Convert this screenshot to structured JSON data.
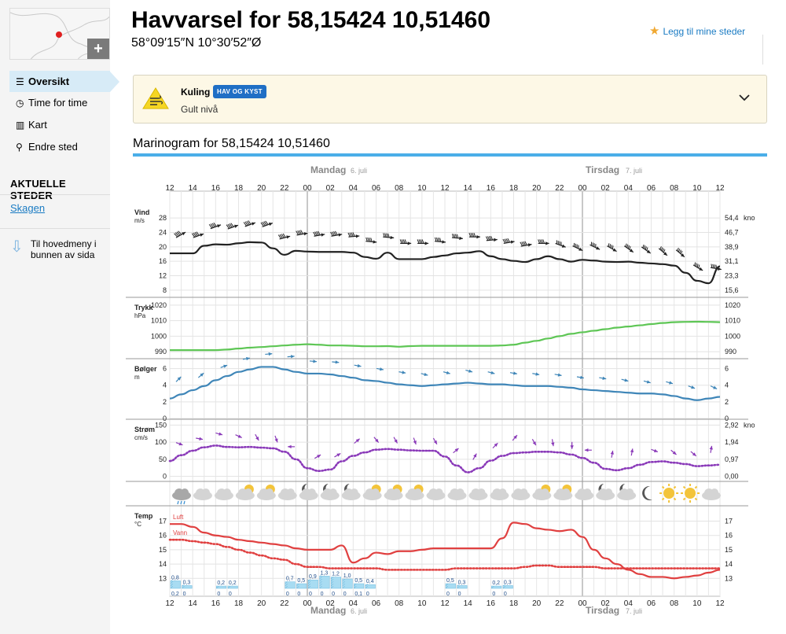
{
  "header": {
    "title": "Havvarsel for 58,15424 10,51460",
    "coordinates": "58°09′15″N 10°30′52″Ø",
    "favorite_label": "Legg til mine steder",
    "map_plus": "+"
  },
  "sidebar": {
    "items": [
      {
        "label": "Oversikt",
        "icon": "list-icon"
      },
      {
        "label": "Time for time",
        "icon": "clock-icon"
      },
      {
        "label": "Kart",
        "icon": "map-icon"
      },
      {
        "label": "Endre sted",
        "icon": "location-pin-icon"
      }
    ],
    "current_places_heading": "AKTUELLE STEDER",
    "current_places": [
      "Skagen"
    ],
    "bottom_menu_link": "Til hovedmeny i bunnen av sida"
  },
  "warning": {
    "title": "Kuling",
    "badge": "HAV OG KYST",
    "level": "Gult nivå",
    "color": "#f5d623",
    "icon": "wind-warning-icon"
  },
  "marinogram_title": "Marinogram for 58,15424 10,51460",
  "chart_data": {
    "type": "line",
    "x": [
      "12",
      "13",
      "14",
      "15",
      "16",
      "17",
      "18",
      "19",
      "20",
      "21",
      "22",
      "23",
      "00",
      "01",
      "02",
      "03",
      "04",
      "05",
      "06",
      "07",
      "08",
      "09",
      "10",
      "11",
      "12",
      "13",
      "14",
      "15",
      "16",
      "17",
      "18",
      "19",
      "20",
      "21",
      "22",
      "23",
      "00",
      "01",
      "02",
      "03",
      "04",
      "05",
      "06",
      "07",
      "08",
      "09",
      "10",
      "11",
      "12"
    ],
    "x_tick_labels": [
      "12",
      "14",
      "16",
      "18",
      "20",
      "22",
      "00",
      "02",
      "04",
      "06",
      "08",
      "10",
      "12",
      "14",
      "16",
      "18",
      "20",
      "22",
      "00",
      "02",
      "04",
      "06",
      "08",
      "10",
      "12"
    ],
    "day_labels": [
      {
        "day": "Mandag",
        "date": "6. juli",
        "at_hour_index": 12
      },
      {
        "day": "Tirsdag",
        "date": "7. juli",
        "at_hour_index": 36
      }
    ],
    "panels": [
      {
        "name": "Vind",
        "unit": "m/s",
        "right_unit": "knop",
        "ylim": [
          6,
          30
        ],
        "left_ticks": [
          "28",
          "24",
          "20",
          "16",
          "12",
          "8"
        ],
        "right_ticks": [
          "54,4",
          "46,7",
          "38,9",
          "31,1",
          "23,3",
          "15,6"
        ],
        "series": [
          {
            "color": "#222222",
            "values": [
              18.2,
              18.2,
              18.2,
              20.3,
              20.7,
              20.6,
              21.0,
              21.3,
              21.2,
              19.6,
              17.8,
              18.9,
              18.7,
              18.6,
              18.6,
              18.6,
              18.4,
              17.2,
              16.7,
              18.4,
              16.6,
              16.6,
              16.6,
              17.2,
              17.6,
              18.2,
              18.4,
              18.8,
              17.4,
              16.6,
              16.1,
              15.8,
              16.6,
              17.4,
              16.6,
              15.9,
              16.4,
              16.2,
              15.9,
              15.8,
              15.9,
              15.6,
              15.4,
              15.2,
              14.8,
              12.8,
              10.6,
              9.9,
              14.6
            ]
          }
        ]
      },
      {
        "name": "Trykk",
        "unit": "hPa",
        "right_unit": "",
        "ylim": [
          986,
          1024
        ],
        "left_ticks": [
          "1020",
          "1010",
          "1000",
          "990"
        ],
        "right_ticks": [
          "1020",
          "1010",
          "1000",
          "990"
        ],
        "series": [
          {
            "color": "#5ec655",
            "values": [
              991.0,
              991.0,
              991.0,
              991.0,
              991.0,
              991.4,
              992.0,
              992.6,
              993.0,
              993.5,
              994.0,
              994.5,
              994.8,
              994.5,
              994.0,
              994.0,
              993.8,
              993.5,
              993.5,
              993.6,
              993.2,
              993.6,
              993.8,
              993.8,
              993.8,
              993.8,
              993.8,
              993.8,
              993.8,
              994.0,
              994.5,
              995.8,
              997.0,
              998.5,
              1000.0,
              1001.5,
              1002.5,
              1003.5,
              1004.5,
              1005.5,
              1006.2,
              1007.0,
              1007.8,
              1008.5,
              1009.0,
              1009.2,
              1009.3,
              1009.2,
              1009.0
            ]
          }
        ]
      },
      {
        "name": "Bølger",
        "unit": "m",
        "right_unit": "",
        "ylim": [
          0,
          7
        ],
        "left_ticks": [
          "6",
          "4",
          "2",
          "0"
        ],
        "right_ticks": [
          "6",
          "4",
          "2",
          "0"
        ],
        "series": [
          {
            "color": "#3f86b8",
            "values": [
              2.4,
              2.9,
              3.4,
              3.9,
              4.6,
              5.1,
              5.6,
              5.9,
              6.2,
              6.2,
              5.9,
              5.6,
              5.4,
              5.4,
              5.3,
              5.1,
              4.9,
              4.6,
              4.5,
              4.3,
              4.1,
              4.0,
              3.9,
              4.0,
              4.1,
              4.2,
              4.3,
              4.2,
              4.1,
              4.1,
              4.0,
              3.9,
              3.9,
              3.9,
              3.8,
              3.7,
              3.5,
              3.4,
              3.3,
              3.2,
              3.1,
              3.0,
              3.0,
              2.9,
              2.7,
              2.4,
              2.2,
              2.4,
              2.6
            ]
          }
        ]
      },
      {
        "name": "Strøm",
        "unit": "cm/s",
        "right_unit": "knop",
        "ylim": [
          -10,
          160
        ],
        "left_ticks": [
          "150",
          "100",
          "50",
          "0"
        ],
        "right_ticks": [
          "2,92",
          "1,94",
          "0,97",
          "0,00"
        ],
        "series": [
          {
            "color": "#8a3ab9",
            "style": "dotted",
            "values": [
              45,
              62,
              75,
              85,
              90,
              86,
              85,
              86,
              84,
              82,
              72,
              50,
              24,
              16,
              20,
              44,
              60,
              70,
              78,
              80,
              78,
              76,
              75,
              75,
              58,
              32,
              12,
              24,
              46,
              60,
              68,
              70,
              72,
              72,
              70,
              64,
              54,
              40,
              22,
              18,
              24,
              34,
              42,
              44,
              40,
              36,
              30,
              32,
              34
            ]
          }
        ]
      },
      {
        "name": "Temp",
        "unit": "°C",
        "right_unit": "",
        "ylim": [
          12.3,
          17.8
        ],
        "left_ticks": [
          "17",
          "16",
          "15",
          "14",
          "13"
        ],
        "right_ticks": [
          "17",
          "16",
          "15",
          "14",
          "13"
        ],
        "series": [
          {
            "name": "Luft",
            "color": "#e04040",
            "values": [
              16.8,
              16.8,
              16.6,
              16.2,
              16.0,
              15.9,
              15.7,
              15.6,
              15.5,
              15.4,
              15.3,
              15.1,
              15.0,
              15.0,
              15.0,
              15.3,
              14.1,
              14.4,
              14.8,
              14.7,
              14.9,
              14.9,
              15.0,
              15.1,
              15.1,
              15.1,
              15.1,
              15.1,
              15.1,
              15.8,
              16.9,
              16.8,
              16.5,
              16.4,
              16.3,
              16.4,
              15.9,
              15.0,
              14.4,
              14.0,
              13.6,
              13.3,
              13.1,
              13.1,
              13.0,
              13.1,
              13.2,
              13.4,
              13.6
            ]
          },
          {
            "name": "Vann",
            "color": "#e04040",
            "style": "dotted",
            "values": [
              15.7,
              15.7,
              15.6,
              15.5,
              15.4,
              15.2,
              15.0,
              14.8,
              14.6,
              14.4,
              14.3,
              14.0,
              13.8,
              13.8,
              13.7,
              13.7,
              13.7,
              13.7,
              13.7,
              13.6,
              13.6,
              13.6,
              13.6,
              13.6,
              13.6,
              13.7,
              13.7,
              13.7,
              13.7,
              13.7,
              13.7,
              13.8,
              13.9,
              13.9,
              13.8,
              13.8,
              13.8,
              13.8,
              13.7,
              13.7,
              13.7,
              13.7,
              13.7,
              13.7,
              13.7,
              13.7,
              13.7,
              13.7,
              13.7
            ]
          }
        ],
        "precipitation": [
          {
            "hour_index": 0,
            "label": "0,8",
            "bottom_label": "0,2"
          },
          {
            "hour_index": 1,
            "label": "0,3",
            "bottom_label": "0"
          },
          {
            "hour_index": 4,
            "label": "0,2",
            "bottom_label": "0"
          },
          {
            "hour_index": 5,
            "label": "0,2",
            "bottom_label": "0"
          },
          {
            "hour_index": 10,
            "label": "0,7",
            "bottom_label": "0"
          },
          {
            "hour_index": 11,
            "label": "0,5",
            "bottom_label": "0"
          },
          {
            "hour_index": 12,
            "label": "0,9",
            "bottom_label": "0"
          },
          {
            "hour_index": 13,
            "label": "1,3",
            "bottom_label": "0"
          },
          {
            "hour_index": 14,
            "label": "1,2",
            "bottom_label": "0"
          },
          {
            "hour_index": 15,
            "label": "1,0",
            "bottom_label": "0"
          },
          {
            "hour_index": 16,
            "label": "0,5",
            "bottom_label": "0,1"
          },
          {
            "hour_index": 17,
            "label": "0,4",
            "bottom_label": "0"
          },
          {
            "hour_index": 24,
            "label": "0,5",
            "bottom_label": "0"
          },
          {
            "hour_index": 25,
            "label": "0,3",
            "bottom_label": "0"
          },
          {
            "hour_index": 28,
            "label": "0,2",
            "bottom_label": "0"
          },
          {
            "hour_index": 29,
            "label": "0,3",
            "bottom_label": "0"
          }
        ]
      }
    ],
    "weather_symbols": [
      "rain-cloud-icon",
      "cloud-icon",
      "cloud-icon",
      "partly-sunny-icon",
      "partly-sunny-icon",
      "cloud-icon",
      "moon-cloud-icon",
      "moon-cloud-icon",
      "moon-cloud-icon",
      "partly-sunny-icon",
      "partly-sunny-icon",
      "partly-sunny-icon",
      "cloud-icon",
      "cloud-icon",
      "cloud-icon",
      "cloud-icon",
      "cloud-icon",
      "partly-sunny-icon",
      "partly-sunny-icon",
      "cloud-icon",
      "moon-cloud-icon",
      "moon-cloud-icon",
      "moon-icon",
      "sun-icon",
      "sun-icon",
      "cloud-icon"
    ]
  }
}
